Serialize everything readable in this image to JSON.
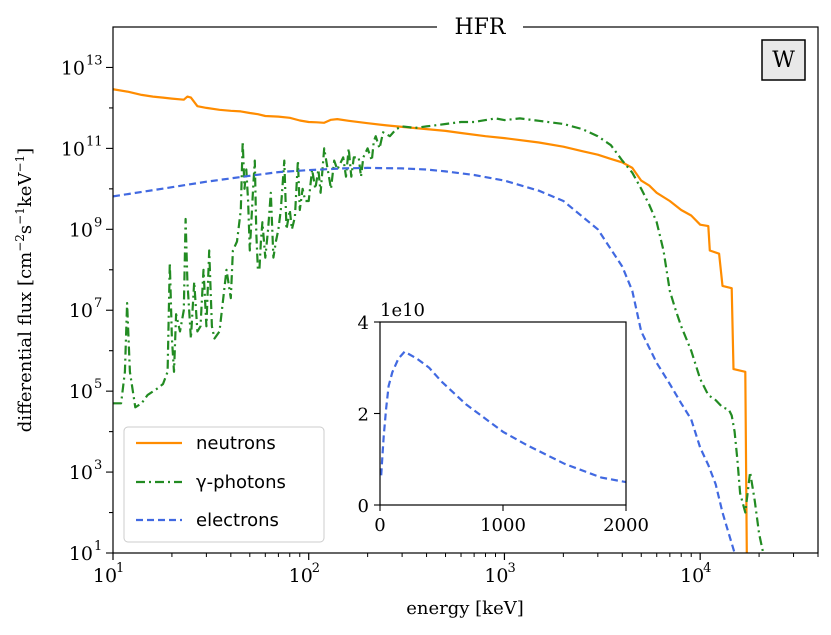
{
  "chart_data": [
    {
      "type": "line",
      "title": "HFR",
      "badge": "W",
      "xlabel": "energy [keV]",
      "ylabel": "differential flux [cm−2s−1keV−1]",
      "xscale": "log",
      "yscale": "log",
      "xlim": [
        10,
        40000
      ],
      "ylim": [
        10,
        100000000000000.0
      ],
      "x_ticks": [
        {
          "base": "10",
          "exp": "1"
        },
        {
          "base": "10",
          "exp": "2"
        },
        {
          "base": "10",
          "exp": "3"
        },
        {
          "base": "10",
          "exp": "4"
        }
      ],
      "y_ticks": [
        {
          "base": "10",
          "exp": "1"
        },
        {
          "base": "10",
          "exp": "3"
        },
        {
          "base": "10",
          "exp": "5"
        },
        {
          "base": "10",
          "exp": "7"
        },
        {
          "base": "10",
          "exp": "9"
        },
        {
          "base": "10",
          "exp": "11"
        },
        {
          "base": "10",
          "exp": "13"
        }
      ],
      "legend_position": "lower-left",
      "grid": false,
      "series": [
        {
          "name": "neutrons",
          "color": "#ff8c00",
          "dash": "solid",
          "points": [
            [
              10,
              2900000000000.0
            ],
            [
              12,
              2500000000000.0
            ],
            [
              14,
              2100000000000.0
            ],
            [
              16,
              1900000000000.0
            ],
            [
              18,
              1800000000000.0
            ],
            [
              20,
              1700000000000.0
            ],
            [
              23,
              1600000000000.0
            ],
            [
              24,
              1900000000000.0
            ],
            [
              25,
              1800000000000.0
            ],
            [
              27,
              1100000000000.0
            ],
            [
              30,
              1000000000000.0
            ],
            [
              35,
              900000000000.0
            ],
            [
              40,
              850000000000.0
            ],
            [
              45,
              820000000000.0
            ],
            [
              50,
              750000000000.0
            ],
            [
              55,
              700000000000.0
            ],
            [
              60,
              630000000000.0
            ],
            [
              70,
              610000000000.0
            ],
            [
              80,
              570000000000.0
            ],
            [
              90,
              490000000000.0
            ],
            [
              100,
              450000000000.0
            ],
            [
              110,
              440000000000.0
            ],
            [
              120,
              430000000000.0
            ],
            [
              130,
              510000000000.0
            ],
            [
              140,
              530000000000.0
            ],
            [
              160,
              480000000000.0
            ],
            [
              200,
              420000000000.0
            ],
            [
              250,
              370000000000.0
            ],
            [
              300,
              340000000000.0
            ],
            [
              400,
              300000000000.0
            ],
            [
              500,
              270000000000.0
            ],
            [
              600,
              240000000000.0
            ],
            [
              800,
              200000000000.0
            ],
            [
              1000,
              180000000000.0
            ],
            [
              1500,
              140000000000.0
            ],
            [
              2000,
              110000000000.0
            ],
            [
              2500,
              85000000000.0
            ],
            [
              3000,
              70000000000.0
            ],
            [
              3500,
              55000000000.0
            ],
            [
              4000,
              45000000000.0
            ],
            [
              4500,
              33000000000.0
            ],
            [
              5000,
              16000000000.0
            ],
            [
              5500,
              12000000000.0
            ],
            [
              6000,
              8000000000.0
            ],
            [
              7000,
              5000000000.0
            ],
            [
              8000,
              3000000000.0
            ],
            [
              9000,
              2200000000.0
            ],
            [
              10000,
              1300000000.0
            ],
            [
              11000,
              1200000000.0
            ],
            [
              11200,
              300000000.0
            ],
            [
              12500,
              250000000.0
            ],
            [
              13000,
              40000000.0
            ],
            [
              14500,
              35000000.0
            ],
            [
              14800,
              350000.0
            ],
            [
              17000,
              300000.0
            ],
            [
              17300,
              10
            ]
          ]
        },
        {
          "name": "γ-photons",
          "color": "#228b22",
          "dash": "dashdot",
          "points": [
            [
              10,
              50000.0
            ],
            [
              11,
              50000.0
            ],
            [
              11.5,
              300000.0
            ],
            [
              11.8,
              15000000.0
            ],
            [
              12.2,
              300000.0
            ],
            [
              13,
              40000.0
            ],
            [
              14,
              50000.0
            ],
            [
              15,
              80000.0
            ],
            [
              17,
              120000.0
            ],
            [
              18,
              150000.0
            ],
            [
              19,
              300000.0
            ],
            [
              19.5,
              150000000.0
            ],
            [
              20,
              2000000.0
            ],
            [
              20.5,
              300000.0
            ],
            [
              21,
              8000000.0
            ],
            [
              22,
              3000000.0
            ],
            [
              23,
              10000000.0
            ],
            [
              23.5,
              1800000000.0
            ],
            [
              24,
              50000000.0
            ],
            [
              25,
              2000000.0
            ],
            [
              26,
              50000000.0
            ],
            [
              27,
              3000000.0
            ],
            [
              28,
              4000000.0
            ],
            [
              29,
              100000000.0
            ],
            [
              30,
              4000000.0
            ],
            [
              31,
              300000000.0
            ],
            [
              32,
              4000000.0
            ],
            [
              33,
              2000000.0
            ],
            [
              35,
              3000000.0
            ],
            [
              36,
              10000000.0
            ],
            [
              38,
              100000000.0
            ],
            [
              40,
              20000000.0
            ],
            [
              41,
              300000000.0
            ],
            [
              43,
              500000000.0
            ],
            [
              45,
              3000000000.0
            ],
            [
              46,
              150000000000.0
            ],
            [
              47,
              10000000000.0
            ],
            [
              48,
              30000000000.0
            ],
            [
              49,
              5000000000.0
            ],
            [
              50,
              300000000.0
            ],
            [
              52,
              10000000000.0
            ],
            [
              53,
              50000000000.0
            ],
            [
              54,
              800000000.0
            ],
            [
              55,
              100000000.0
            ],
            [
              56,
              100000000.0
            ],
            [
              57,
              500000000.0
            ],
            [
              58,
              1500000000.0
            ],
            [
              60,
              200000000.0
            ],
            [
              62,
              1000000000.0
            ],
            [
              64,
              8000000000.0
            ],
            [
              66,
              200000000.0
            ],
            [
              68,
              500000000.0
            ],
            [
              70,
              1000000000.0
            ],
            [
              72,
              3000000000.0
            ],
            [
              75,
              50000000000.0
            ],
            [
              77,
              1000000000.0
            ],
            [
              80,
              3000000000.0
            ],
            [
              82,
              1000000000.0
            ],
            [
              85,
              2000000000.0
            ],
            [
              88,
              50000000000.0
            ],
            [
              90,
              3000000000.0
            ],
            [
              93,
              10000000000.0
            ],
            [
              96,
              5000000000.0
            ],
            [
              100,
              5000000000.0
            ],
            [
              104,
              30000000000.0
            ],
            [
              108,
              10000000000.0
            ],
            [
              112,
              30000000000.0
            ],
            [
              115,
              8000000000.0
            ],
            [
              120,
              100000000000.0
            ],
            [
              125,
              30000000000.0
            ],
            [
              130,
              10000000000.0
            ],
            [
              135,
              50000000000.0
            ],
            [
              140,
              30000000000.0
            ],
            [
              150,
              60000000000.0
            ],
            [
              155,
              20000000000.0
            ],
            [
              160,
              100000000000.0
            ],
            [
              165,
              20000000000.0
            ],
            [
              170,
              60000000000.0
            ],
            [
              180,
              60000000000.0
            ],
            [
              185,
              20000000000.0
            ],
            [
              190,
              60000000000.0
            ],
            [
              200,
              100000000000.0
            ],
            [
              210,
              50000000000.0
            ],
            [
              215,
              150000000000.0
            ],
            [
              220,
              200000000000.0
            ],
            [
              230,
              100000000000.0
            ],
            [
              240,
              250000000000.0
            ],
            [
              260,
              200000000000.0
            ],
            [
              280,
              300000000000.0
            ],
            [
              300,
              350000000000.0
            ],
            [
              350,
              320000000000.0
            ],
            [
              400,
              350000000000.0
            ],
            [
              500,
              400000000000.0
            ],
            [
              600,
              450000000000.0
            ],
            [
              700,
              450000000000.0
            ],
            [
              800,
              500000000000.0
            ],
            [
              900,
              550000000000.0
            ],
            [
              1000,
              500000000000.0
            ],
            [
              1200,
              550000000000.0
            ],
            [
              1500,
              480000000000.0
            ],
            [
              2000,
              400000000000.0
            ],
            [
              2500,
              300000000000.0
            ],
            [
              3000,
              200000000000.0
            ],
            [
              3500,
              120000000000.0
            ],
            [
              4000,
              50000000000.0
            ],
            [
              4500,
              25000000000.0
            ],
            [
              5000,
              10000000000.0
            ],
            [
              5500,
              4000000000.0
            ],
            [
              6000,
              1500000000.0
            ],
            [
              6500,
              300000000.0
            ],
            [
              7000,
              30000000.0
            ],
            [
              7500,
              10000000.0
            ],
            [
              8000,
              4000000.0
            ],
            [
              9000,
              1000000.0
            ],
            [
              10000,
              200000.0
            ],
            [
              11000,
              80000.0
            ],
            [
              12000,
              60000.0
            ],
            [
              13000,
              40000.0
            ],
            [
              14000,
              35000.0
            ],
            [
              14500,
              25000.0
            ],
            [
              15000,
              10000.0
            ],
            [
              15500,
              2000.0
            ],
            [
              16000,
              300.0
            ],
            [
              17000,
              100.0
            ],
            [
              18000,
              1000.0
            ],
            [
              19000,
              200.0
            ],
            [
              20000,
              30
            ],
            [
              21000,
              10
            ]
          ]
        },
        {
          "name": "electrons",
          "color": "#4169e1",
          "dash": "dashed",
          "points": [
            [
              10,
              6500000000.0
            ],
            [
              20,
              11000000000.0
            ],
            [
              30,
              15000000000.0
            ],
            [
              50,
              21000000000.0
            ],
            [
              70,
              26000000000.0
            ],
            [
              100,
              29000000000.0
            ],
            [
              150,
              32000000000.0
            ],
            [
              200,
              33000000000.0
            ],
            [
              300,
              32000000000.0
            ],
            [
              400,
              30000000000.0
            ],
            [
              500,
              27000000000.0
            ],
            [
              700,
              22000000000.0
            ],
            [
              1000,
              16000000000.0
            ],
            [
              1500,
              9000000000.0
            ],
            [
              2000,
              5000000000.0
            ],
            [
              3000,
              1000000000.0
            ],
            [
              4000,
              120000000.0
            ],
            [
              4500,
              30000000.0
            ],
            [
              5000,
              3000000.0
            ],
            [
              6000,
              500000.0
            ],
            [
              7000,
              150000.0
            ],
            [
              8000,
              50000.0
            ],
            [
              9000,
              20000.0
            ],
            [
              10000,
              4000.0
            ],
            [
              11000,
              1500.0
            ],
            [
              12000,
              500.0
            ],
            [
              13000,
              100.0
            ],
            [
              14000,
              30
            ],
            [
              15000,
              10
            ]
          ]
        }
      ]
    },
    {
      "type": "line",
      "inset": true,
      "xscale": "linear",
      "yscale": "linear",
      "xlim": [
        0,
        2000
      ],
      "ylim": [
        0,
        4
      ],
      "y_multiplier_label": "1e10",
      "x_ticks": [
        "0",
        "1000",
        "2000"
      ],
      "y_ticks": [
        "0",
        "2",
        "4"
      ],
      "series": [
        {
          "color": "#4169e1",
          "dash": "dashed",
          "points": [
            [
              10,
              0.65
            ],
            [
              20,
              1.1
            ],
            [
              30,
              1.5
            ],
            [
              50,
              2.1
            ],
            [
              70,
              2.6
            ],
            [
              100,
              2.9
            ],
            [
              150,
              3.2
            ],
            [
              200,
              3.35
            ],
            [
              300,
              3.2
            ],
            [
              400,
              3.0
            ],
            [
              500,
              2.7
            ],
            [
              700,
              2.2
            ],
            [
              1000,
              1.6
            ],
            [
              1200,
              1.3
            ],
            [
              1500,
              0.9
            ],
            [
              1800,
              0.6
            ],
            [
              2000,
              0.5
            ]
          ]
        }
      ]
    }
  ]
}
